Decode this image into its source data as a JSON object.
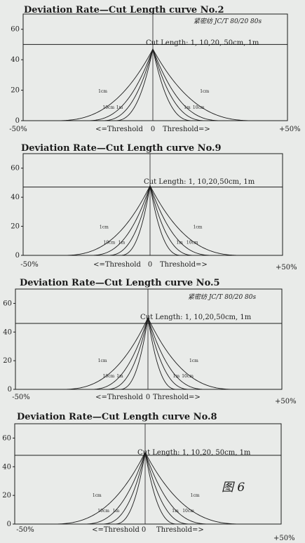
{
  "colors": {
    "paper": "#e9ebe9",
    "ink": "#1c1c1c"
  },
  "chart_data": [
    {
      "type": "line",
      "title": "Deviation Rate—Cut Length curve No.2",
      "subtitle": "Cut Length: 1, 10,20, 50cm, 1m",
      "handwriting": "紧密纺 JC/T 80/20 80s",
      "x_ticks": [
        "-50%",
        "0",
        "+50%"
      ],
      "x_labels": [
        "<=Threshold",
        "Threshold=>"
      ],
      "y_ticks": [
        0,
        20,
        40,
        60
      ],
      "xlim": [
        -50,
        50
      ],
      "ylim": [
        0,
        70
      ],
      "reference_line": 50,
      "series": [
        {
          "label": "1cm",
          "spread": 38,
          "peak": 47
        },
        {
          "label": "10cm",
          "spread": 26,
          "peak": 47
        },
        {
          "label": "1m",
          "spread": 20,
          "peak": 47
        },
        {
          "label": "",
          "spread": 15,
          "peak": 47
        }
      ]
    },
    {
      "type": "line",
      "title": "Deviation Rate—Cut Length curve No.9",
      "subtitle": "Cut Length: 1, 10,20,50cm, 1m",
      "handwriting": "",
      "x_ticks": [
        "-50%",
        "0",
        "+50%"
      ],
      "x_labels": [
        "<=Threshold",
        "Threshold=>"
      ],
      "y_ticks": [
        0,
        20,
        40,
        60
      ],
      "xlim": [
        -50,
        50
      ],
      "ylim": [
        0,
        70
      ],
      "reference_line": 47,
      "series": [
        {
          "label": "1cm",
          "spread": 35,
          "peak": 48
        },
        {
          "label": "10cm",
          "spread": 24,
          "peak": 48
        },
        {
          "label": "1m",
          "spread": 17,
          "peak": 48
        },
        {
          "label": "",
          "spread": 12,
          "peak": 48
        }
      ]
    },
    {
      "type": "line",
      "title": "Deviation Rate—Cut Length curve No.5",
      "subtitle": "Cut Length: 1, 10,20,50cm, 1m",
      "handwriting": "紧密纺 JC/T 80/20 80s",
      "x_ticks": [
        "-50%",
        "0",
        "+50%"
      ],
      "x_labels": [
        "<=Threshold",
        "Threshold=>"
      ],
      "y_ticks": [
        0,
        20,
        40,
        60
      ],
      "xlim": [
        -50,
        50
      ],
      "ylim": [
        0,
        70
      ],
      "reference_line": 46,
      "series": [
        {
          "label": "1cm",
          "spread": 33,
          "peak": 50
        },
        {
          "label": "10cm",
          "spread": 22,
          "peak": 50
        },
        {
          "label": "1m",
          "spread": 16,
          "peak": 50
        },
        {
          "label": "",
          "spread": 11,
          "peak": 50
        }
      ]
    },
    {
      "type": "line",
      "title": "Deviation Rate—Cut Length curve No.8",
      "subtitle": "Cut Length: 1, 10,20, 50cm, 1m",
      "handwriting": "图 6",
      "x_ticks": [
        "-50%",
        "0",
        "+50%"
      ],
      "x_labels": [
        "<=Threshold",
        "Threshold=>"
      ],
      "y_ticks": [
        0,
        20,
        40,
        60
      ],
      "xlim": [
        -50,
        50
      ],
      "ylim": [
        0,
        70
      ],
      "reference_line": 48,
      "series": [
        {
          "label": "1cm",
          "spread": 36,
          "peak": 50
        },
        {
          "label": "10cm",
          "spread": 24,
          "peak": 50
        },
        {
          "label": "1m",
          "spread": 17,
          "peak": 50
        },
        {
          "label": "",
          "spread": 12,
          "peak": 50
        }
      ]
    }
  ]
}
